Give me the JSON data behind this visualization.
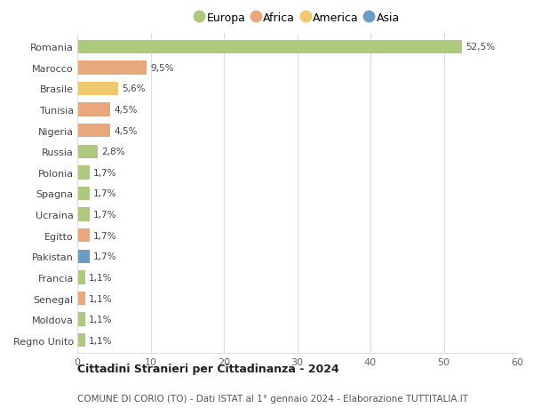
{
  "countries": [
    "Romania",
    "Marocco",
    "Brasile",
    "Tunisia",
    "Nigeria",
    "Russia",
    "Polonia",
    "Spagna",
    "Ucraina",
    "Egitto",
    "Pakistan",
    "Francia",
    "Senegal",
    "Moldova",
    "Regno Unito"
  ],
  "values": [
    52.5,
    9.5,
    5.6,
    4.5,
    4.5,
    2.8,
    1.7,
    1.7,
    1.7,
    1.7,
    1.7,
    1.1,
    1.1,
    1.1,
    1.1
  ],
  "labels": [
    "52,5%",
    "9,5%",
    "5,6%",
    "4,5%",
    "4,5%",
    "2,8%",
    "1,7%",
    "1,7%",
    "1,7%",
    "1,7%",
    "1,7%",
    "1,1%",
    "1,1%",
    "1,1%",
    "1,1%"
  ],
  "colors": [
    "#adc97e",
    "#e8a87c",
    "#f0c96e",
    "#e8a87c",
    "#e8a87c",
    "#adc97e",
    "#adc97e",
    "#adc97e",
    "#adc97e",
    "#e8a87c",
    "#6b9dc2",
    "#adc97e",
    "#e8a87c",
    "#adc97e",
    "#adc97e"
  ],
  "legend_labels": [
    "Europa",
    "Africa",
    "America",
    "Asia"
  ],
  "legend_colors": [
    "#adc97e",
    "#e8a87c",
    "#f0c96e",
    "#6b9dc2"
  ],
  "title": "Cittadini Stranieri per Cittadinanza - 2024",
  "subtitle": "COMUNE DI CORIO (TO) - Dati ISTAT al 1° gennaio 2024 - Elaborazione TUTTITALIA.IT",
  "xlim": [
    0,
    60
  ],
  "xticks": [
    0,
    10,
    20,
    30,
    40,
    50,
    60
  ],
  "background_color": "#ffffff",
  "grid_color": "#dddddd",
  "bar_height": 0.65
}
